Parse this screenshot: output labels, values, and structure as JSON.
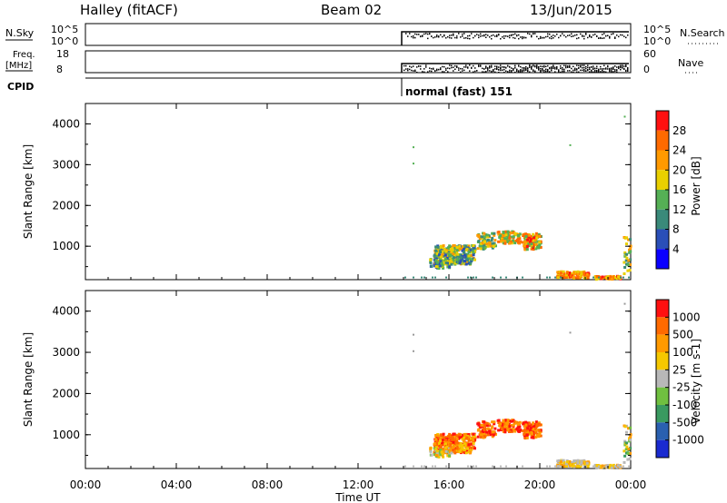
{
  "header": {
    "station": "Halley (fitACF)",
    "beam": "Beam 02",
    "date": "13/Jun/2015"
  },
  "strip_sky": {
    "left_label": "N.Sky",
    "left_ticks": [
      "10^5",
      "10^0"
    ],
    "right_label": "N.Search",
    "right_ticks": [
      "10^5",
      "10^0"
    ]
  },
  "strip_freq": {
    "left_label_1": "Freq.",
    "left_label_2": "[MHz]",
    "left_ticks": [
      "18",
      "8"
    ],
    "right_label": "Nave",
    "right_ticks": [
      "60",
      "0"
    ]
  },
  "cpid": {
    "label": "CPID",
    "mode": "normal (fast) 151"
  },
  "chart_data": [
    {
      "type": "heatmap",
      "name": "power",
      "ylabel": "Slant Range [km]",
      "ylim": [
        180,
        4500
      ],
      "y_ticks": [
        "1000",
        "2000",
        "3000",
        "4000"
      ],
      "colorbar_label": "Power [dB]",
      "colorbar_ticks": [
        "4",
        "8",
        "12",
        "16",
        "20",
        "24",
        "28"
      ],
      "colorbar_colors": [
        "#0a00ff",
        "#2a4fb8",
        "#3a8a7a",
        "#55b055",
        "#e9d000",
        "#ff9a00",
        "#ff6a00",
        "#ff1010"
      ]
    },
    {
      "type": "heatmap",
      "name": "velocity",
      "ylabel": "Slant Range [km]",
      "ylim": [
        180,
        4500
      ],
      "y_ticks": [
        "1000",
        "2000",
        "3000",
        "4000"
      ],
      "colorbar_label": "Velocity [m s-1]",
      "colorbar_ticks": [
        "1000",
        "500",
        "100",
        "25",
        "-25",
        "-100",
        "-500",
        "-1000"
      ],
      "colorbar_colors": [
        "#1a2ad0",
        "#2a60b0",
        "#3a9a60",
        "#70c040",
        "#b8b8b8",
        "#f5c800",
        "#ff9a00",
        "#ff6a00",
        "#ff1010"
      ]
    }
  ],
  "x_axis": {
    "label": "Time UT",
    "ticks": [
      "00:00",
      "04:00",
      "08:00",
      "12:00",
      "16:00",
      "20:00",
      "00:00"
    ]
  }
}
